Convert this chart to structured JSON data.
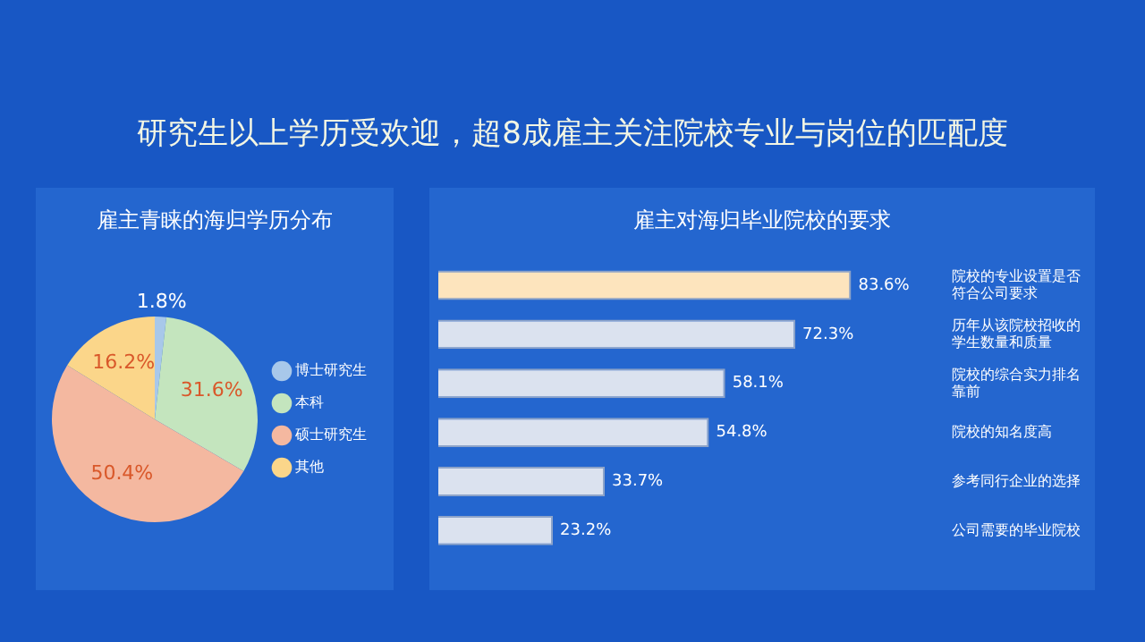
{
  "chart_data": [
    {
      "type": "other",
      "title": "研究生以上学历受欢迎，超8成雇主关注院校专业与岗位的匹配度"
    },
    {
      "type": "pie",
      "title": "雇主青睐的海归学历分布",
      "categories": [
        "博士研究生",
        "本科",
        "硕士研究生",
        "其他"
      ],
      "values": [
        1.8,
        31.6,
        50.4,
        16.2
      ],
      "colors": [
        "#a8c8ea",
        "#c4e5be",
        "#f4b8a0",
        "#fbd68a"
      ],
      "value_labels": [
        "1.8%",
        "31.6%",
        "50.4%",
        "16.2%"
      ],
      "legend": "right"
    },
    {
      "type": "bar",
      "orientation": "horizontal",
      "title": "雇主对海归毕业院校的要求",
      "categories": [
        "院校的专业设置是否符合公司要求",
        "历年从该院校招收的学生数量和质量",
        "院校的综合实力排名靠前",
        "院校的知名度高",
        "参考同行企业的选择",
        "公司需要的毕业院校"
      ],
      "values": [
        83.6,
        72.3,
        58.1,
        54.8,
        33.7,
        23.2
      ],
      "colors": [
        "#fde4bd",
        "#dbe2ef",
        "#dbe2ef",
        "#dbe2ef",
        "#dbe2ef",
        "#dbe2ef"
      ],
      "value_labels": [
        "83.6%",
        "72.3%",
        "58.1%",
        "54.8%",
        "33.7%",
        "23.2%"
      ],
      "tick_labels": "y",
      "legend": false
    }
  ]
}
